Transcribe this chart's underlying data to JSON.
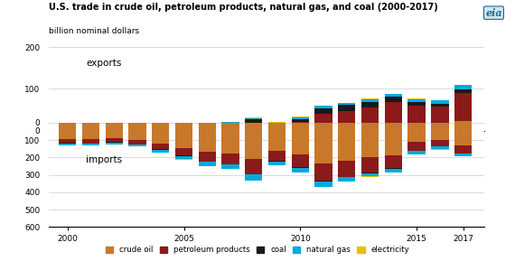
{
  "title": "U.S. trade in crude oil, petroleum products, natural gas, and coal (2000-2017)",
  "ylabel": "billion nominal dollars",
  "years": [
    2000,
    2001,
    2002,
    2003,
    2004,
    2005,
    2006,
    2007,
    2008,
    2009,
    2010,
    2011,
    2012,
    2013,
    2014,
    2015,
    2016,
    2017
  ],
  "colors": {
    "crude_oil": "#c8782a",
    "petroleum_products": "#8b1a1a",
    "coal": "#1a1a1a",
    "natural_gas": "#00aadd",
    "electricity": "#e8c000"
  },
  "exports": {
    "crude_oil": [
      1,
      1,
      1,
      1,
      2,
      2,
      2,
      2,
      2,
      2,
      2,
      4,
      4,
      5,
      14,
      5,
      7,
      22
    ],
    "petroleum_products": [
      3,
      3,
      3,
      4,
      5,
      6,
      8,
      10,
      16,
      10,
      18,
      35,
      42,
      50,
      55,
      55,
      50,
      68
    ],
    "coal": [
      3,
      3,
      2,
      3,
      4,
      5,
      5,
      6,
      8,
      5,
      8,
      14,
      15,
      14,
      13,
      8,
      7,
      9
    ],
    "natural_gas": [
      1,
      1,
      1,
      1,
      2,
      2,
      2,
      3,
      4,
      2,
      4,
      6,
      5,
      6,
      5,
      7,
      8,
      10
    ],
    "electricity": [
      0.5,
      0.3,
      0.3,
      0.3,
      0.5,
      0.5,
      0.5,
      0.5,
      0.5,
      0.5,
      0.5,
      0.5,
      0.5,
      1,
      1,
      1,
      1,
      1
    ]
  },
  "imports": {
    "crude_oil": [
      95,
      95,
      90,
      100,
      120,
      145,
      168,
      178,
      210,
      160,
      185,
      235,
      220,
      200,
      190,
      110,
      100,
      130
    ],
    "petroleum_products": [
      22,
      24,
      22,
      25,
      33,
      45,
      55,
      60,
      85,
      60,
      72,
      100,
      90,
      85,
      72,
      50,
      35,
      45
    ],
    "coal": [
      2,
      2,
      2,
      2,
      3,
      3,
      3,
      3,
      4,
      3,
      3,
      4,
      4,
      4,
      4,
      3,
      2,
      2
    ],
    "natural_gas": [
      10,
      10,
      9,
      10,
      14,
      18,
      22,
      25,
      35,
      20,
      24,
      28,
      22,
      20,
      18,
      18,
      16,
      15
    ],
    "electricity": [
      1,
      1,
      1,
      1,
      1,
      1,
      1,
      1,
      1,
      1,
      1,
      1,
      1,
      1,
      1,
      1,
      1,
      1
    ]
  },
  "background_color": "#ffffff",
  "grid_color": "#cccccc",
  "export_yticks": [
    0,
    100,
    200
  ],
  "import_yticks": [
    0,
    100,
    200,
    300,
    400,
    500,
    600
  ],
  "export_ylim": [
    0,
    200
  ],
  "import_ylim": [
    0,
    600
  ],
  "xlim": [
    1999.2,
    2017.9
  ]
}
